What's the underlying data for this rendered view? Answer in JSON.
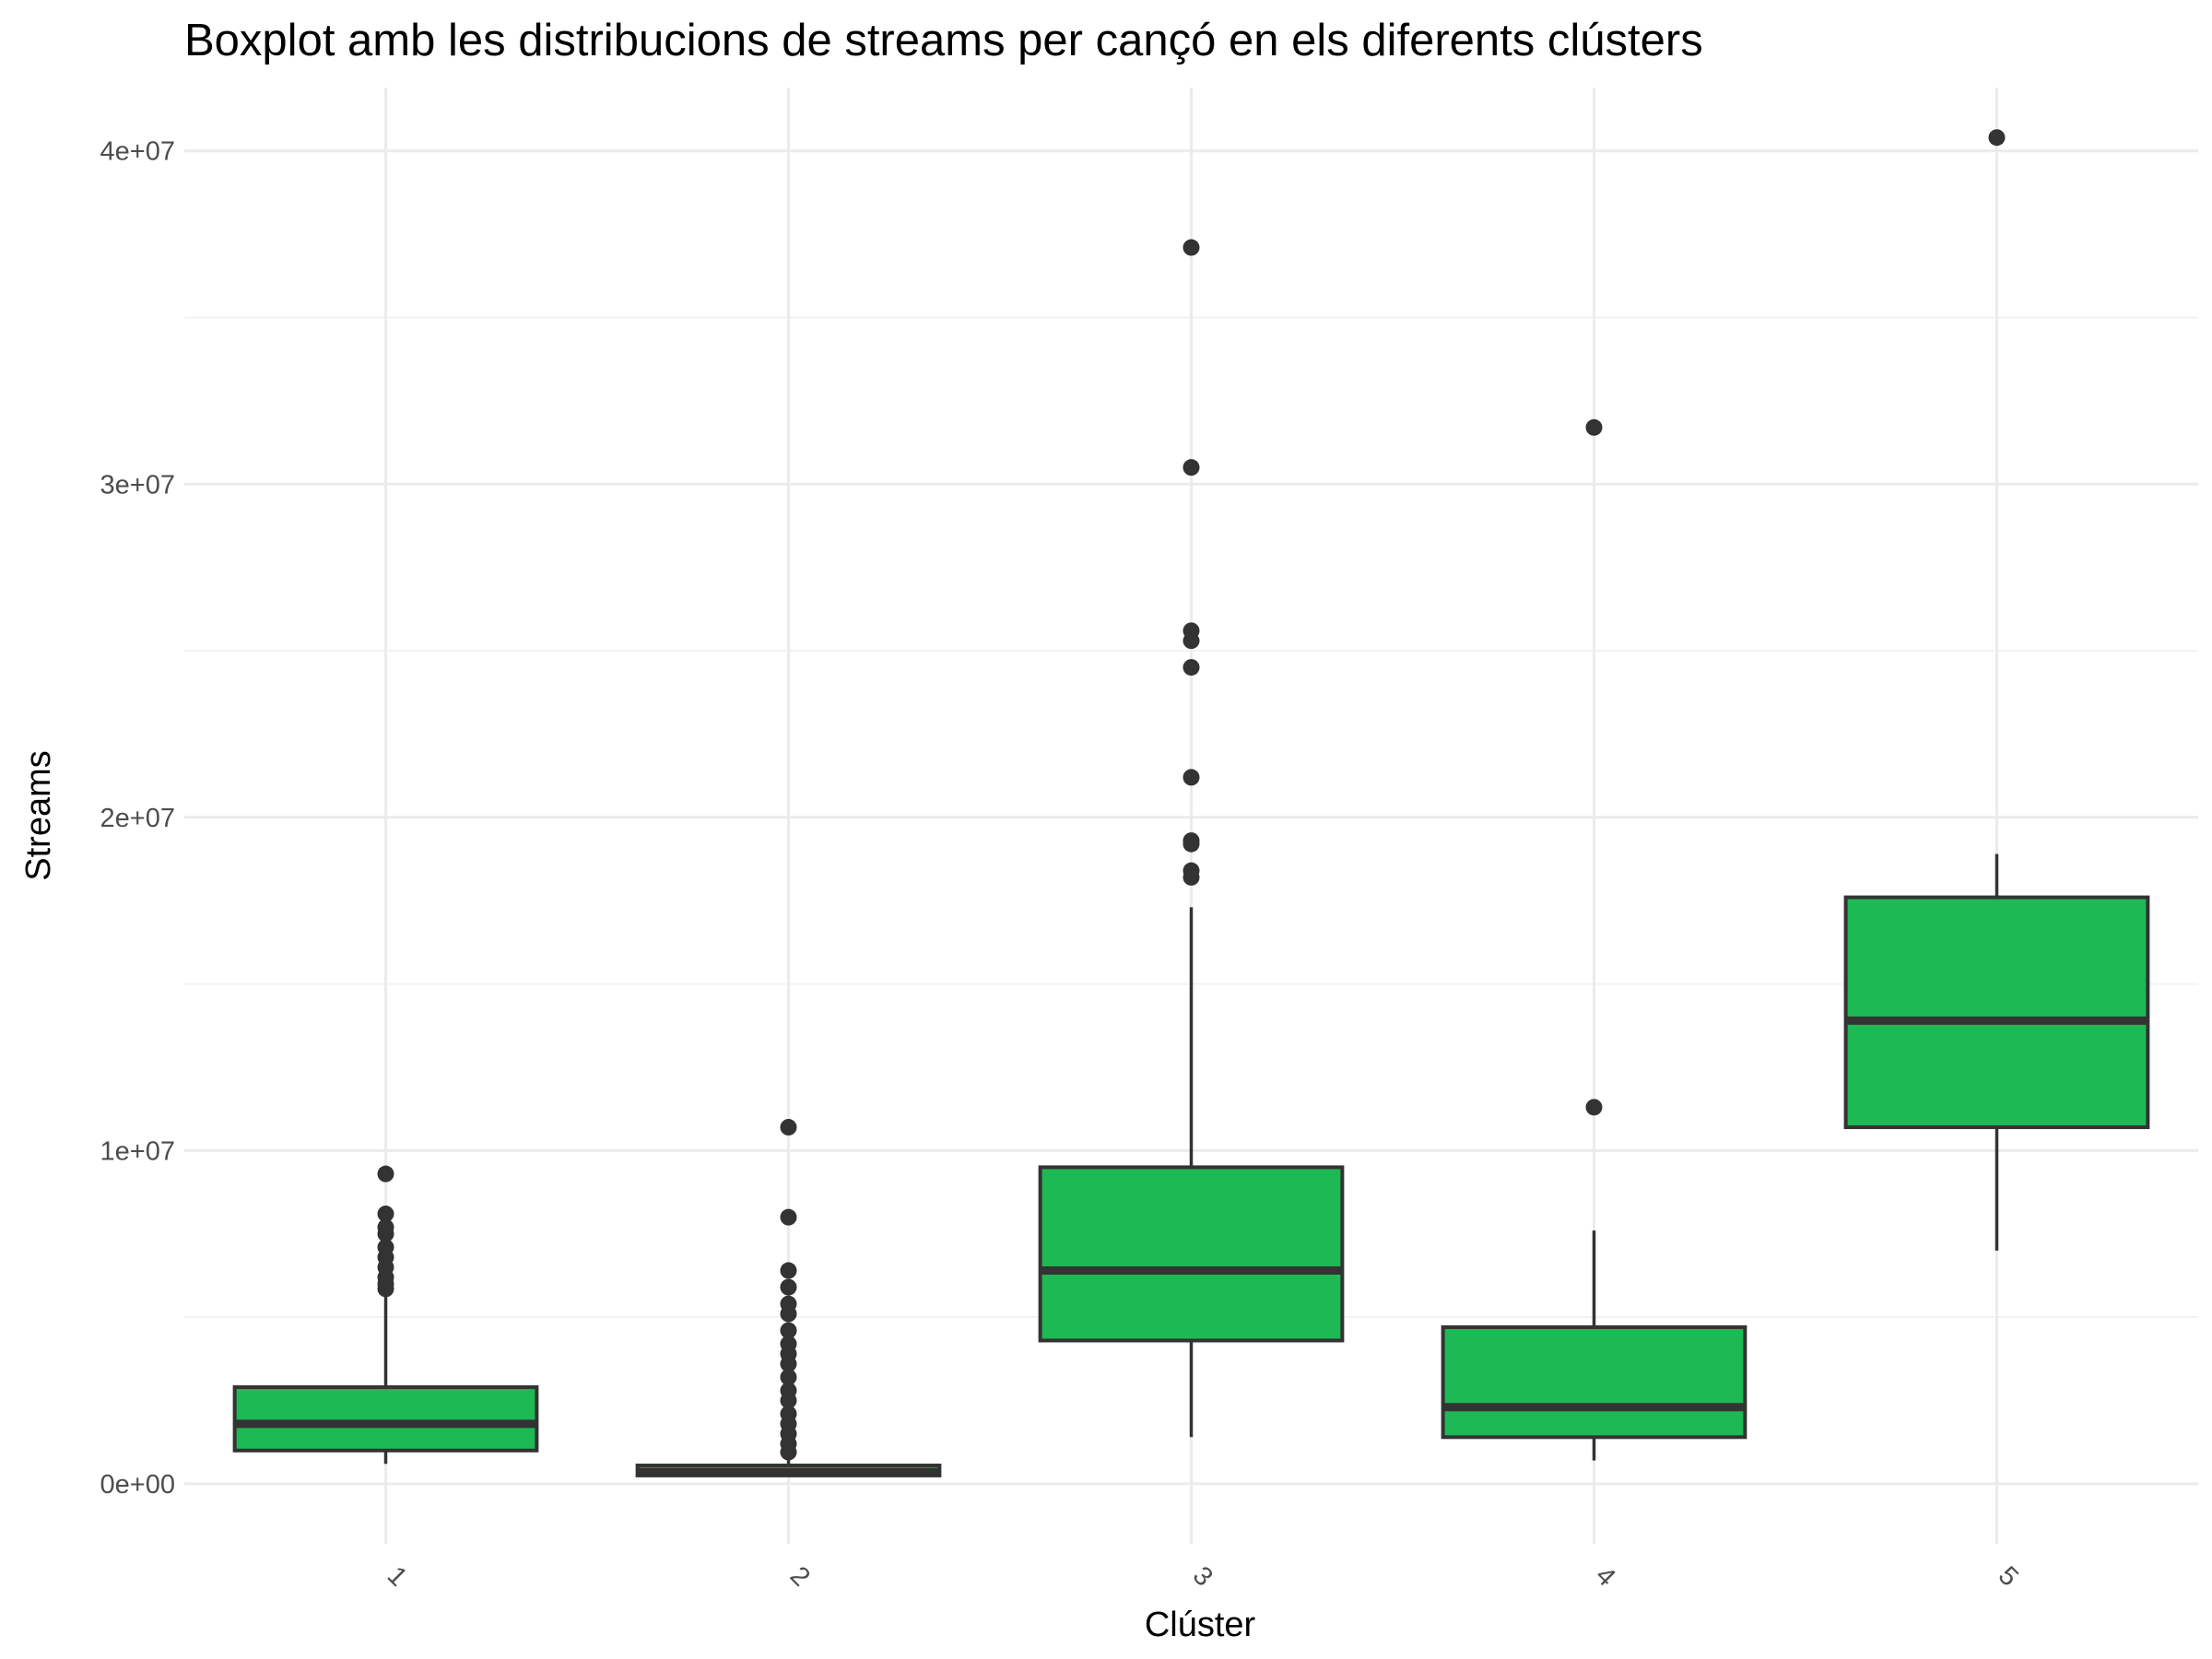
{
  "chart_data": {
    "type": "boxplot",
    "title": "Boxplot amb les distribucions de streams per cançó en els diferents clústers",
    "xlabel": "Clúster",
    "ylabel": "Streams",
    "ylim": [
      -1800000,
      41900000
    ],
    "y_ticks": [
      0,
      10000000,
      20000000,
      30000000,
      40000000
    ],
    "y_tick_labels": [
      "0e+00",
      "1e+07",
      "2e+07",
      "3e+07",
      "4e+07"
    ],
    "categories": [
      "1",
      "2",
      "3",
      "4",
      "5"
    ],
    "box_fill": "#1DB954",
    "box_stroke": "#333333",
    "grid": true,
    "series": [
      {
        "category": "1",
        "whisker_low": 600000,
        "q1": 1000000,
        "median": 1800000,
        "q3": 2900000,
        "whisker_high": 5800000,
        "outliers": [
          9300000,
          8100000,
          7700000,
          7500000,
          7100000,
          6800000,
          6500000,
          6200000,
          6000000,
          5850000
        ]
      },
      {
        "category": "2",
        "whisker_low": 250000,
        "q1": 250000,
        "median": 350000,
        "q3": 550000,
        "whisker_high": 800000,
        "outliers": [
          10700000,
          8000000,
          6400000,
          5900000,
          5400000,
          5100000,
          4600000,
          4200000,
          3900000,
          3600000,
          3200000,
          2800000,
          2500000,
          2100000,
          1800000,
          1500000,
          1200000,
          950000
        ]
      },
      {
        "category": "3",
        "whisker_low": 1400000,
        "q1": 4300000,
        "median": 6400000,
        "q3": 9500000,
        "whisker_high": 17300000,
        "outliers": [
          37100000,
          30500000,
          25600000,
          25300000,
          24500000,
          21200000,
          19300000,
          19200000,
          18400000,
          18200000
        ]
      },
      {
        "category": "4",
        "whisker_low": 700000,
        "q1": 1400000,
        "median": 2300000,
        "q3": 4700000,
        "whisker_high": 7600000,
        "outliers": [
          31700000,
          11300000
        ]
      },
      {
        "category": "5",
        "whisker_low": 7000000,
        "q1": 10700000,
        "median": 13900000,
        "q3": 17600000,
        "whisker_high": 18900000,
        "outliers": [
          40400000
        ]
      }
    ]
  }
}
